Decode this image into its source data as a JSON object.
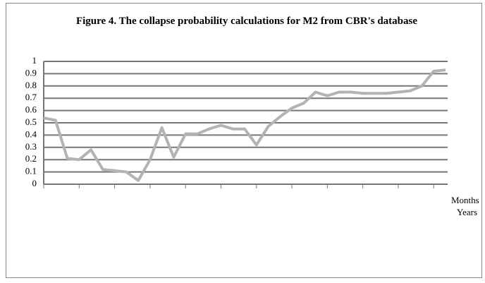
{
  "chart_data": {
    "type": "line",
    "title": "Figure 4. The collapse probability calculations for M2 from CBR's database",
    "x_label_1": "Months",
    "x_label_2": "Years",
    "categories": [
      null,
      null,
      null,
      null,
      null,
      null,
      null,
      null,
      null,
      null,
      null,
      null,
      null,
      null,
      null,
      null,
      null,
      null,
      null,
      null,
      null,
      null,
      null,
      null,
      null,
      null,
      null,
      null,
      null,
      null,
      null,
      null,
      null,
      null,
      null
    ],
    "series": [
      {
        "name": "M2",
        "color": "#b3b3b3",
        "values": [
          0.54,
          0.52,
          0.21,
          0.2,
          0.28,
          0.12,
          0.11,
          0.1,
          0.03,
          0.2,
          0.46,
          0.22,
          0.41,
          0.41,
          0.45,
          0.48,
          0.45,
          0.45,
          0.32,
          0.47,
          0.55,
          0.62,
          0.66,
          0.75,
          0.72,
          0.75,
          0.75,
          0.74,
          0.74,
          0.74,
          0.75,
          0.76,
          0.8,
          0.92,
          0.93
        ]
      }
    ],
    "ylim": [
      0,
      1
    ],
    "yticks": [
      0,
      0.1,
      0.2,
      0.3,
      0.4,
      0.5,
      0.6,
      0.7,
      0.8,
      0.9,
      1
    ],
    "grid": true,
    "grid_color": "#777777"
  }
}
